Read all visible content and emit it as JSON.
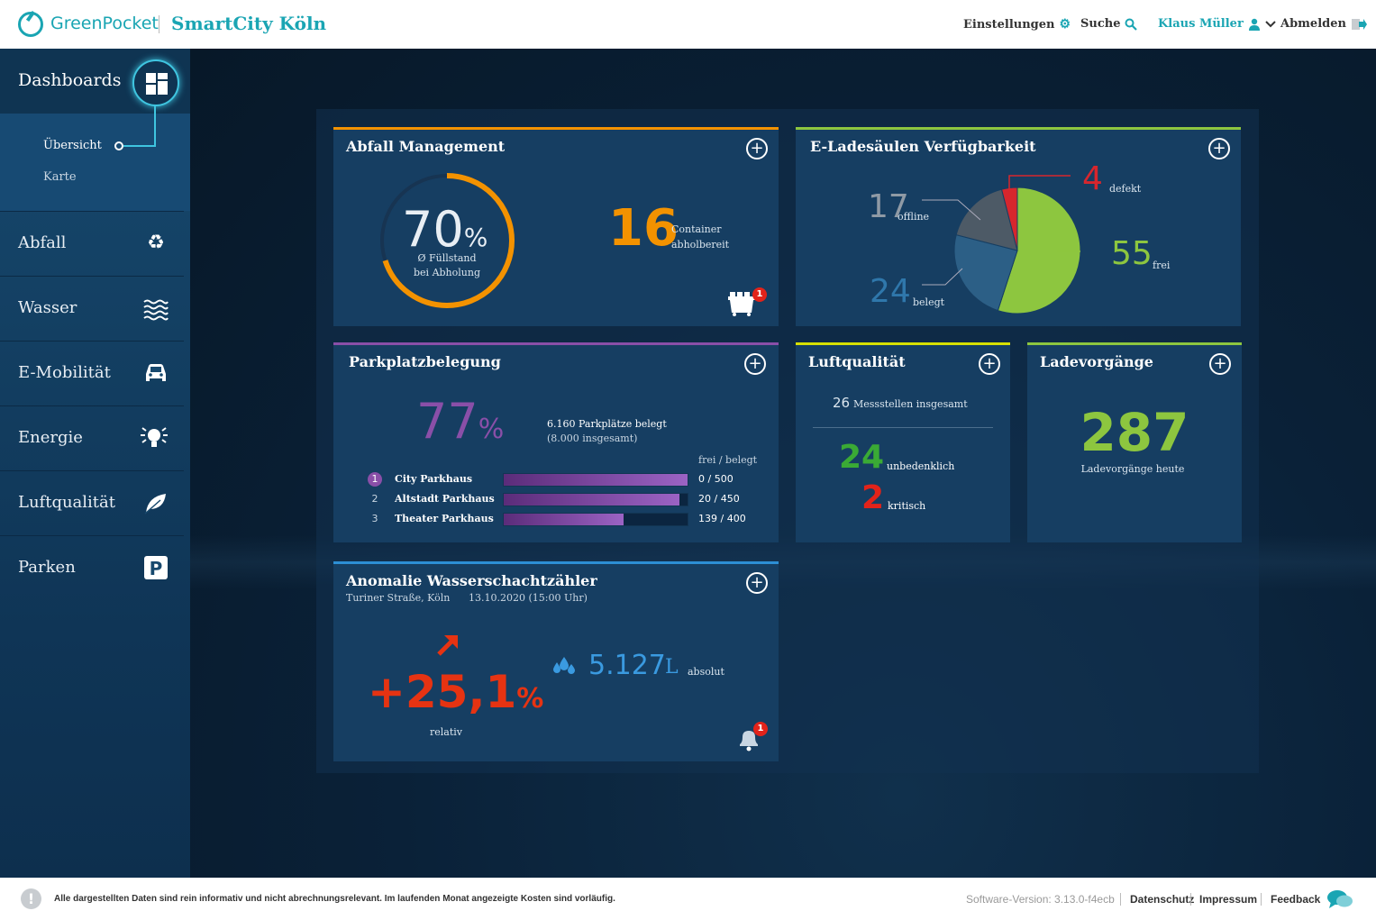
{
  "header": {
    "brand": "GreenPocket",
    "product": "SmartCity Köln",
    "nav": {
      "settings": "Einstellungen",
      "search": "Suche",
      "user": "Klaus Müller",
      "logout": "Abmelden"
    }
  },
  "sidebar": {
    "title": "Dashboards",
    "subitems": [
      "Übersicht",
      "Karte"
    ],
    "items": [
      {
        "label": "Abfall",
        "icon": "recycle-icon"
      },
      {
        "label": "Wasser",
        "icon": "water-waves-icon"
      },
      {
        "label": "E-Mobilität",
        "icon": "car-icon"
      },
      {
        "label": "Energie",
        "icon": "lightbulb-icon"
      },
      {
        "label": "Luftqualität",
        "icon": "leaf-icon"
      },
      {
        "label": "Parken",
        "icon": "parking-icon"
      }
    ]
  },
  "cards": {
    "abfall": {
      "title": "Abfall Management",
      "percent": "70",
      "percent_unit": "%",
      "fill_fraction": 0.7,
      "percent_label_1": "Ø Füllstand",
      "percent_label_2": "bei Abholung",
      "count": "16",
      "count_label_1": "Container",
      "count_label_2": "abholbereit",
      "badge": "1",
      "accent": "#f39200"
    },
    "eladesaeulen": {
      "title": "E-Ladesäulen Verfügbarkeit",
      "accent": "#8dc63f"
    },
    "parkplatz": {
      "title": "Parkplatzbelegung",
      "percent": "77",
      "percent_unit": "%",
      "summary_1": "6.160 Parkplätze belegt",
      "summary_2": "(8.000 insgesamt)",
      "column_header": "frei / belegt",
      "rows": [
        {
          "rank": "1",
          "name": "City Parkhaus",
          "value": "0 / 500",
          "fill": 1.0
        },
        {
          "rank": "2",
          "name": "Altstadt Parkhaus",
          "value": "20 / 450",
          "fill": 0.956
        },
        {
          "rank": "3",
          "name": "Theater Parkhaus",
          "value": "139 / 400",
          "fill": 0.6525
        }
      ],
      "accent": "#8a4fa8"
    },
    "luft": {
      "title": "Luftqualität",
      "total": "26",
      "total_label": "Messstellen insgesamt",
      "ok": "24",
      "ok_label": "unbedenklich",
      "bad": "2",
      "bad_label": "kritisch",
      "accent": "#d7e000"
    },
    "lade": {
      "title": "Ladevorgänge",
      "count": "287",
      "label": "Ladevorgänge heute",
      "accent": "#8dc63f"
    },
    "anomalie": {
      "title": "Anomalie Wasserschachtzähler",
      "location": "Turiner Straße, Köln",
      "datetime": "13.10.2020 (15:00 Uhr)",
      "relative": "+25,1",
      "relative_unit": "%",
      "relative_label": "relativ",
      "absolute": "5.127",
      "absolute_unit": "L",
      "absolute_label": "absolut",
      "badge": "1",
      "accent": "#2d8fd5"
    }
  },
  "chart_data": {
    "type": "pie",
    "categories": [
      "frei",
      "belegt",
      "offline",
      "defekt"
    ],
    "values": [
      55,
      24,
      17,
      4
    ],
    "colors": [
      "#8dc63f",
      "#2c5f86",
      "#4d5a66",
      "#d7262d"
    ]
  },
  "footer": {
    "note": "Alle dargestellten Daten sind rein informativ und nicht abrechnungsrelevant. Im laufenden Monat angezeigte Kosten sind vorläufig.",
    "version": "Software-Version: 3.13.0-f4ecb",
    "privacy": "Datenschutz",
    "imprint": "Impressum",
    "feedback": "Feedback"
  }
}
